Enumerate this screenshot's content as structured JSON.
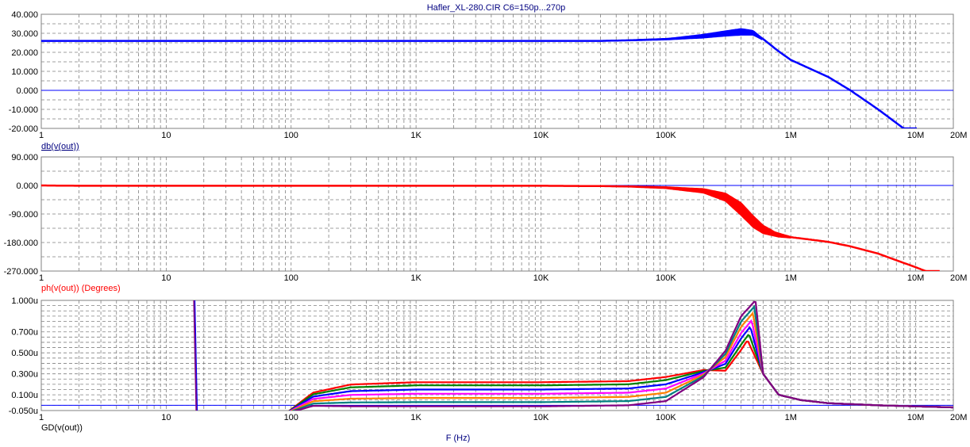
{
  "title": "Hafler_XL-280.CIR C6=150p...270p",
  "xlabel": "F (Hz)",
  "x_ticks": [
    "1",
    "10",
    "100",
    "1K",
    "10K",
    "100K",
    "1M",
    "10M",
    "20M"
  ],
  "colors": {
    "frame": "#808080",
    "grid": "#808080",
    "axis_text": "#000000",
    "title_text": "#000080",
    "gain": "#0000ff",
    "phase": "#ff0000"
  },
  "chart_data": [
    {
      "type": "line",
      "label": "db(v(out))",
      "label_color": "#000080",
      "xscale": "log",
      "xlim": [
        1,
        20000000
      ],
      "ylim": [
        -20,
        40
      ],
      "y_ticks": [
        "40.000",
        "30.000",
        "20.000",
        "10.000",
        "0.000",
        "-10.000",
        "-20.000"
      ],
      "y_tick_values": [
        40,
        30,
        20,
        10,
        0,
        -10,
        -20
      ],
      "zero_line": true,
      "series": [
        {
          "color": "#0000ff",
          "band_width": 0.0,
          "x": [
            1,
            1000,
            10000,
            30000,
            50000,
            100000,
            200000,
            300000,
            400000,
            500000,
            600000,
            800000,
            1000000,
            2000000,
            3000000,
            5000000,
            8000000
          ],
          "y": [
            26,
            26,
            26,
            26,
            26.3,
            27,
            28.5,
            30,
            31,
            30.5,
            27,
            20.5,
            16,
            7,
            0,
            -10,
            -20
          ]
        }
      ],
      "bands": [
        {
          "color": "#0000ff",
          "x": [
            50000,
            100000,
            200000,
            300000,
            400000,
            500000,
            600000
          ],
          "upper": [
            26.4,
            27.2,
            29.5,
            31.3,
            32.5,
            31.5,
            27.2
          ],
          "lower": [
            26.0,
            26.5,
            27.5,
            28.5,
            29.0,
            29.0,
            26.3
          ]
        }
      ]
    },
    {
      "type": "line",
      "label": "ph(v(out)) (Degrees)",
      "label_color": "#ff0000",
      "xscale": "log",
      "xlim": [
        1,
        20000000
      ],
      "ylim": [
        -270,
        90
      ],
      "y_ticks": [
        "90.000",
        "0.000",
        "-90.000",
        "-180.000",
        "-270.000"
      ],
      "y_tick_values": [
        90,
        0,
        -90,
        -180,
        -270
      ],
      "zero_line": true,
      "series": [
        {
          "color": "#ff0000",
          "x": [
            1,
            2,
            10,
            1000,
            10000,
            30000,
            50000,
            100000,
            200000,
            300000,
            400000,
            500000,
            700000,
            1000000,
            2000000,
            3000000,
            5000000,
            10000000,
            12000000
          ],
          "y": [
            0,
            -1,
            -1,
            -1,
            -1,
            -2,
            -3,
            -6,
            -15,
            -35,
            -70,
            -110,
            -145,
            -163,
            -178,
            -192,
            -215,
            -258,
            -270
          ]
        }
      ],
      "bands": [
        {
          "color": "#ff0000",
          "x": [
            30000,
            50000,
            100000,
            200000,
            300000,
            400000,
            500000,
            600000,
            800000,
            1000000
          ],
          "upper": [
            -1,
            -2,
            -4,
            -10,
            -24,
            -54,
            -95,
            -125,
            -153,
            -162
          ],
          "lower": [
            -3,
            -5,
            -10,
            -24,
            -50,
            -95,
            -133,
            -152,
            -163,
            -166
          ]
        }
      ]
    },
    {
      "type": "line",
      "label": "GD(v(out))",
      "label_color": "#000000",
      "xscale": "log",
      "xlim": [
        1,
        20000000
      ],
      "ylim": [
        -0.05,
        1.0
      ],
      "y_ticks": [
        "1.000u",
        "0.700u",
        "0.500u",
        "0.300u",
        "0.100u",
        "-0.050u"
      ],
      "y_tick_values": [
        1.0,
        0.7,
        0.5,
        0.3,
        0.1,
        -0.05
      ],
      "zero_line": true,
      "spike_x": 17,
      "series": [
        {
          "color": "#ff0000",
          "plateau": 0.22,
          "peak": 0.62
        },
        {
          "color": "#008000",
          "plateau": 0.19,
          "peak": 0.68
        },
        {
          "color": "#0000ff",
          "plateau": 0.15,
          "peak": 0.75
        },
        {
          "color": "#ff00ff",
          "plateau": 0.11,
          "peak": 0.81
        },
        {
          "color": "#ff8000",
          "plateau": 0.07,
          "peak": 0.88
        },
        {
          "color": "#008080",
          "plateau": 0.03,
          "peak": 0.94
        },
        {
          "color": "#800080",
          "plateau": -0.01,
          "peak": 1.0
        }
      ]
    }
  ]
}
